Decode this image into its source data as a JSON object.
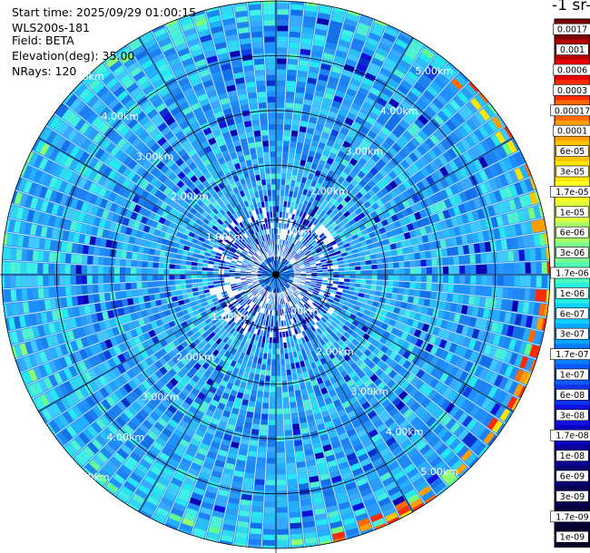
{
  "header": {
    "start_time": "Start time: 2025/09/29 01:00:15",
    "instrument": "WLS200s-181",
    "field": "Field: BETA",
    "elevation": "Elevation(deg): 35.00",
    "nrays": "NRays: 120",
    "unit_title": "-1 sr-"
  },
  "chart_data": {
    "type": "heatmap",
    "projection": "polar",
    "field": "BETA",
    "n_rays": 120,
    "elevation_deg": 35.0,
    "max_range_km": 5.0,
    "range_rings_km": [
      1,
      2,
      3,
      4,
      5
    ],
    "ring_labels": [
      "1.00km",
      "2.00km",
      "3.00km",
      "4.00km",
      "5.00km"
    ],
    "azimuth_grid_step_deg": 30,
    "colorbar": {
      "ticks": [
        "0.0017",
        "0.001",
        "0.0006",
        "0.0003",
        "0.00017",
        "0.0001",
        "6e-05",
        "3e-05",
        "1.7e-05",
        "1e-05",
        "6e-06",
        "3e-06",
        "1.7e-06",
        "1e-06",
        "6e-07",
        "3e-07",
        "1.7e-07",
        "1e-07",
        "6e-08",
        "3e-08",
        "1.7e-08",
        "1e-08",
        "6e-09",
        "3e-09",
        "1.7e-09",
        "1e-09"
      ],
      "colors": [
        "#7b0000",
        "#b40000",
        "#e80000",
        "#ff2a00",
        "#ff6a00",
        "#ff9e00",
        "#ffc400",
        "#ffe600",
        "#ffff24",
        "#e0ff40",
        "#a8ff66",
        "#78ff90",
        "#4affb8",
        "#26f0e0",
        "#10d0ff",
        "#0aa6ff",
        "#0a7cff",
        "#1058ff",
        "#1034f0",
        "#1010e0",
        "#0a00c0",
        "#0a0096",
        "#080070",
        "#060050",
        "#04003a",
        "#020028"
      ]
    }
  }
}
